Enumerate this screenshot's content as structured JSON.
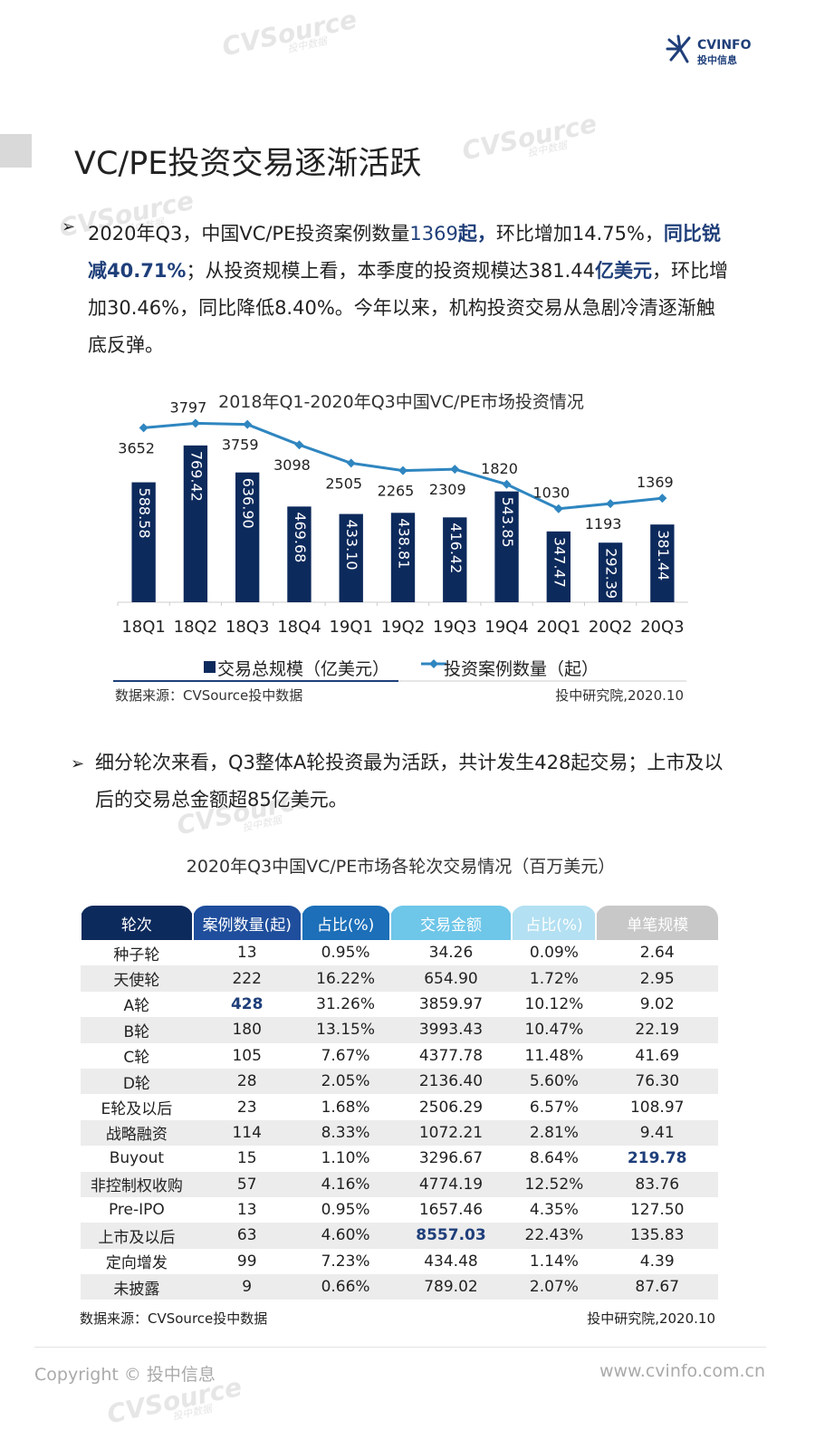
{
  "header": {
    "logo": "CVINFO",
    "logo_sub": "投中信息",
    "watermark": "CVSource",
    "watermark_sub": "投中数据"
  },
  "title": "VC/PE投资交易逐渐活跃",
  "paragraph1": [
    "2020年Q3，中国VC/PE投资案例数量",
    "1369",
    "起，",
    "环比增加14.75%，",
    "同比锐减40.71%",
    "；从投资规模上看，本季度的投资规模达381.44",
    "亿美元",
    "，环比增加30.46%，同比降低8.40%。今年以来，机构投资交易从急剧冷清逐渐触底反弹。"
  ],
  "chart_data": {
    "type": "combo",
    "title": "2018年Q1-2020年Q3中国VC/PE市场投资情况",
    "categories": [
      "18Q1",
      "18Q2",
      "18Q3",
      "18Q4",
      "19Q1",
      "19Q2",
      "19Q3",
      "19Q4",
      "20Q1",
      "20Q2",
      "20Q3"
    ],
    "series": [
      {
        "name": "交易总规模（亿美元）",
        "type": "bar",
        "color": "#0d2a5c",
        "values": [
          588.58,
          769.42,
          636.9,
          469.68,
          433.1,
          438.81,
          416.42,
          543.85,
          347.47,
          292.39,
          381.44
        ],
        "value_labels": [
          "588.58",
          "769.42",
          "636.90",
          "469.68",
          "433.10",
          "438.81",
          "416.42",
          "543.85",
          "347.47",
          "292.39",
          "381.44"
        ]
      },
      {
        "name": "投资案例数量（起）",
        "type": "line",
        "axis": "y2",
        "color": "#2f86c0",
        "values": [
          3652,
          3797,
          3759,
          3098,
          2505,
          2265,
          2309,
          1820,
          1030,
          1193,
          1369
        ]
      }
    ],
    "ylim": [
      0,
      1000
    ],
    "y2lim": [
      -2000,
      4600
    ],
    "source": "数据来源：CVSource投中数据",
    "credit": "投中研究院,2020.10"
  },
  "paragraph2": "细分轮次来看，Q3整体A轮投资最为活跃，共计发生428起交易；上市及以后的交易总金额超85亿美元。",
  "table": {
    "title": "2020年Q3中国VC/PE市场各轮次交易情况（百万美元）",
    "columns": [
      "轮次",
      "案例数量(起)",
      "占比(%)",
      "交易金额",
      "占比(%)",
      "单笔规模"
    ],
    "rows": [
      [
        "种子轮",
        "13",
        "0.95%",
        "34.26",
        "0.09%",
        "2.64"
      ],
      [
        "天使轮",
        "222",
        "16.22%",
        "654.90",
        "1.72%",
        "2.95"
      ],
      [
        "A轮",
        "428",
        "31.26%",
        "3859.97",
        "10.12%",
        "9.02"
      ],
      [
        "B轮",
        "180",
        "13.15%",
        "3993.43",
        "10.47%",
        "22.19"
      ],
      [
        "C轮",
        "105",
        "7.67%",
        "4377.78",
        "11.48%",
        "41.69"
      ],
      [
        "D轮",
        "28",
        "2.05%",
        "2136.40",
        "5.60%",
        "76.30"
      ],
      [
        "E轮及以后",
        "23",
        "1.68%",
        "2506.29",
        "6.57%",
        "108.97"
      ],
      [
        "战略融资",
        "114",
        "8.33%",
        "1072.21",
        "2.81%",
        "9.41"
      ],
      [
        "Buyout",
        "15",
        "1.10%",
        "3296.67",
        "8.64%",
        "219.78"
      ],
      [
        "非控制权收购",
        "57",
        "4.16%",
        "4774.19",
        "12.52%",
        "83.76"
      ],
      [
        "Pre-IPO",
        "13",
        "0.95%",
        "1657.46",
        "4.35%",
        "127.50"
      ],
      [
        "上市及以后",
        "63",
        "4.60%",
        "8557.03",
        "22.43%",
        "135.83"
      ],
      [
        "定向增发",
        "99",
        "7.23%",
        "434.48",
        "1.14%",
        "4.39"
      ],
      [
        "未披露",
        "9",
        "0.66%",
        "789.02",
        "2.07%",
        "87.67"
      ]
    ],
    "source": "数据来源：CVSource投中数据",
    "credit": "投中研究院,2020.10"
  },
  "footer": {
    "copyright": "Copyright © 投中信息",
    "website": "www.cvinfo.com.cn"
  }
}
